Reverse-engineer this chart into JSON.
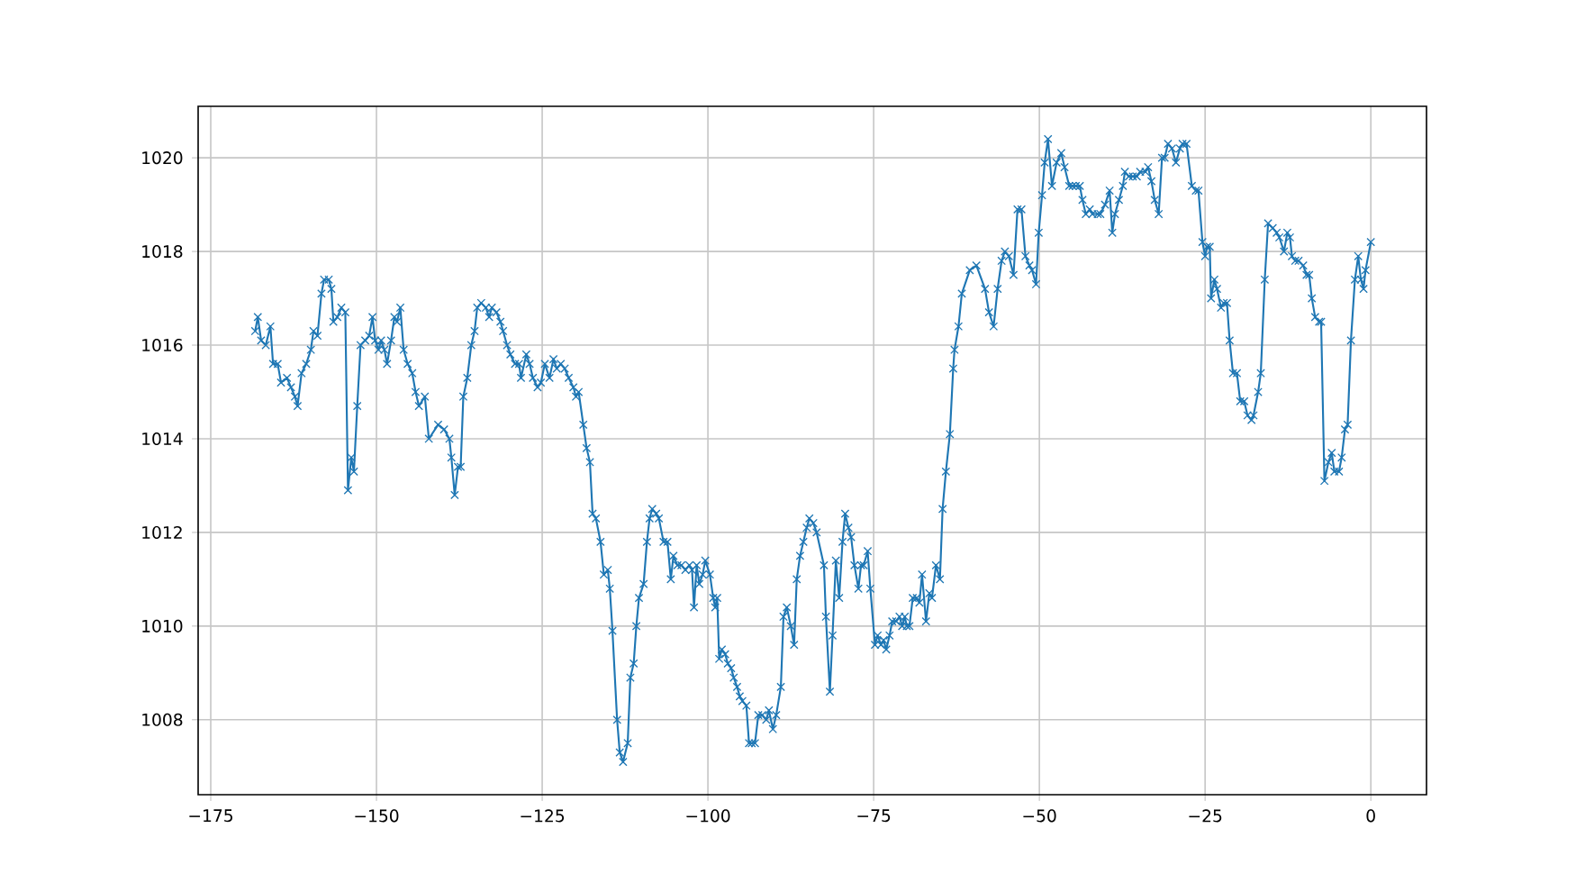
{
  "chart_data": {
    "type": "line",
    "color": "#1f77b4",
    "marker": "cross",
    "line_style": "solid",
    "grid": true,
    "xlim": [
      -176.9,
      8.4
    ],
    "ylim": [
      1006.4,
      1021.1
    ],
    "xticks": [
      {
        "value": -175,
        "label": "−175"
      },
      {
        "value": -150,
        "label": "−150"
      },
      {
        "value": -125,
        "label": "−125"
      },
      {
        "value": -100,
        "label": "−100"
      },
      {
        "value": -75,
        "label": "−75"
      },
      {
        "value": -50,
        "label": "−50"
      },
      {
        "value": -25,
        "label": "−25"
      },
      0
    ],
    "yticks": [
      1008,
      1010,
      1012,
      1014,
      1016,
      1018,
      1020
    ],
    "x": [
      -168.3,
      -167.9,
      -167.4,
      -166.7,
      -166.0,
      -165.6,
      -164.9,
      -164.4,
      -163.5,
      -162.9,
      -162.3,
      -161.9,
      -161.3,
      -160.6,
      -159.9,
      -159.5,
      -158.9,
      -158.3,
      -157.9,
      -157.2,
      -156.8,
      -156.5,
      -155.9,
      -155.3,
      -154.7,
      -154.3,
      -153.8,
      -153.4,
      -152.9,
      -152.4,
      -151.7,
      -151.1,
      -150.6,
      -150.2,
      -149.7,
      -149.3,
      -148.8,
      -148.4,
      -147.8,
      -147.3,
      -146.9,
      -146.4,
      -145.9,
      -145.3,
      -144.6,
      -144.1,
      -143.6,
      -142.7,
      -142.1,
      -140.7,
      -139.8,
      -139.0,
      -138.7,
      -138.2,
      -137.7,
      -137.3,
      -136.9,
      -136.3,
      -135.7,
      -135.2,
      -134.8,
      -134.2,
      -133.5,
      -133.0,
      -132.6,
      -131.9,
      -131.3,
      -130.9,
      -130.3,
      -129.8,
      -129.1,
      -128.5,
      -128.2,
      -127.4,
      -126.9,
      -126.4,
      -125.7,
      -125.2,
      -124.6,
      -123.9,
      -123.3,
      -122.8,
      -122.2,
      -121.6,
      -121.0,
      -120.3,
      -119.9,
      -119.5,
      -118.8,
      -118.3,
      -117.8,
      -117.4,
      -116.9,
      -116.2,
      -115.7,
      -115.1,
      -114.8,
      -114.4,
      -113.7,
      -113.3,
      -112.8,
      -112.1,
      -111.7,
      -111.2,
      -110.8,
      -110.4,
      -109.7,
      -109.2,
      -108.8,
      -108.4,
      -107.8,
      -107.4,
      -106.7,
      -106.1,
      -105.6,
      -105.2,
      -104.6,
      -104.0,
      -103.4,
      -102.8,
      -102.4,
      -102.1,
      -101.7,
      -101.3,
      -100.8,
      -100.4,
      -99.7,
      -99.2,
      -98.9,
      -98.6,
      -98.3,
      -97.9,
      -97.4,
      -97.0,
      -96.5,
      -96.1,
      -95.6,
      -95.2,
      -94.8,
      -94.2,
      -93.8,
      -93.4,
      -92.9,
      -92.4,
      -91.8,
      -91.2,
      -90.8,
      -90.2,
      -89.7,
      -89.0,
      -88.6,
      -88.1,
      -87.5,
      -87.0,
      -86.6,
      -86.1,
      -85.6,
      -85.1,
      -84.7,
      -84.1,
      -83.6,
      -82.5,
      -82.2,
      -81.6,
      -81.2,
      -80.7,
      -80.2,
      -79.7,
      -79.3,
      -78.8,
      -78.4,
      -77.9,
      -77.3,
      -76.9,
      -76.5,
      -75.9,
      -75.5,
      -74.8,
      -74.4,
      -73.9,
      -73.5,
      -73.1,
      -72.6,
      -72.2,
      -71.6,
      -71.1,
      -70.7,
      -70.3,
      -70.0,
      -69.6,
      -69.1,
      -68.5,
      -68.1,
      -67.7,
      -67.1,
      -66.6,
      -66.2,
      -65.6,
      -65.0,
      -64.6,
      -64.1,
      -63.5,
      -63.0,
      -62.8,
      -62.2,
      -61.7,
      -60.5,
      -59.5,
      -58.2,
      -57.6,
      -56.9,
      -56.3,
      -55.7,
      -55.2,
      -54.6,
      -53.9,
      -53.3,
      -52.7,
      -52.1,
      -51.5,
      -51.1,
      -50.5,
      -50.1,
      -49.6,
      -49.2,
      -48.7,
      -48.1,
      -47.4,
      -46.7,
      -46.2,
      -45.5,
      -45.0,
      -44.5,
      -43.9,
      -43.5,
      -43.0,
      -42.4,
      -42.0,
      -41.2,
      -40.8,
      -40.1,
      -39.4,
      -39.0,
      -38.6,
      -38.0,
      -37.4,
      -37.1,
      -36.5,
      -35.9,
      -35.3,
      -34.8,
      -34.0,
      -33.6,
      -33.1,
      -32.6,
      -32.0,
      -31.5,
      -31.1,
      -30.6,
      -30.0,
      -29.4,
      -28.8,
      -28.4,
      -27.8,
      -27.0,
      -26.4,
      -26.0,
      -25.4,
      -25.0,
      -24.7,
      -24.3,
      -24.1,
      -23.6,
      -23.2,
      -22.6,
      -22.2,
      -21.7,
      -21.3,
      -20.8,
      -20.2,
      -19.7,
      -19.1,
      -18.6,
      -18.0,
      -17.7,
      -17.0,
      -16.6,
      -16.0,
      -15.5,
      -14.8,
      -14.2,
      -13.8,
      -13.1,
      -12.6,
      -12.2,
      -11.9,
      -11.4,
      -10.9,
      -10.2,
      -9.7,
      -9.3,
      -8.9,
      -8.4,
      -7.8,
      -7.5,
      -7.0,
      -6.4,
      -5.9,
      -5.5,
      -4.8,
      -4.4,
      -3.9,
      -3.5,
      -3.0,
      -2.4,
      -1.9,
      -1.5,
      -1.1,
      -0.8,
      0.0
    ],
    "values": [
      1016.3,
      1016.6,
      1016.1,
      1016.0,
      1016.4,
      1015.6,
      1015.6,
      1015.2,
      1015.3,
      1015.1,
      1014.9,
      1014.7,
      1015.4,
      1015.6,
      1015.9,
      1016.3,
      1016.2,
      1017.1,
      1017.4,
      1017.4,
      1017.2,
      1016.5,
      1016.6,
      1016.8,
      1016.7,
      1012.9,
      1013.6,
      1013.3,
      1014.7,
      1016.0,
      1016.1,
      1016.2,
      1016.6,
      1016.1,
      1015.9,
      1016.1,
      1015.9,
      1015.6,
      1016.1,
      1016.6,
      1016.5,
      1016.8,
      1015.9,
      1015.6,
      1015.4,
      1015.0,
      1014.7,
      1014.9,
      1014.0,
      1014.3,
      1014.2,
      1014.0,
      1013.6,
      1012.8,
      1013.4,
      1013.4,
      1014.9,
      1015.3,
      1016.0,
      1016.3,
      1016.8,
      1016.9,
      1016.8,
      1016.6,
      1016.8,
      1016.7,
      1016.5,
      1016.3,
      1016.0,
      1015.8,
      1015.6,
      1015.6,
      1015.3,
      1015.8,
      1015.6,
      1015.3,
      1015.1,
      1015.2,
      1015.6,
      1015.3,
      1015.7,
      1015.5,
      1015.6,
      1015.5,
      1015.3,
      1015.1,
      1014.9,
      1015.0,
      1014.3,
      1013.8,
      1013.5,
      1012.4,
      1012.3,
      1011.8,
      1011.1,
      1011.2,
      1010.8,
      1009.9,
      1008.0,
      1007.3,
      1007.1,
      1007.5,
      1008.9,
      1009.2,
      1010.0,
      1010.6,
      1010.9,
      1011.8,
      1012.3,
      1012.5,
      1012.4,
      1012.3,
      1011.8,
      1011.8,
      1011.0,
      1011.5,
      1011.3,
      1011.3,
      1011.2,
      1011.3,
      1011.2,
      1010.4,
      1011.3,
      1010.9,
      1011.1,
      1011.4,
      1011.1,
      1010.6,
      1010.4,
      1010.6,
      1009.3,
      1009.5,
      1009.4,
      1009.2,
      1009.1,
      1008.9,
      1008.7,
      1008.5,
      1008.4,
      1008.3,
      1007.5,
      1007.5,
      1007.5,
      1008.1,
      1008.1,
      1008.0,
      1008.2,
      1007.8,
      1008.1,
      1008.7,
      1010.2,
      1010.4,
      1010.0,
      1009.6,
      1011.0,
      1011.5,
      1011.8,
      1012.1,
      1012.3,
      1012.2,
      1012.0,
      1011.3,
      1010.2,
      1008.6,
      1009.8,
      1011.4,
      1010.6,
      1011.8,
      1012.4,
      1012.1,
      1011.9,
      1011.3,
      1010.8,
      1011.3,
      1011.3,
      1011.6,
      1010.8,
      1009.6,
      1009.8,
      1009.6,
      1009.7,
      1009.5,
      1009.8,
      1010.1,
      1010.1,
      1010.2,
      1010.0,
      1010.2,
      1010.0,
      1010.0,
      1010.6,
      1010.6,
      1010.5,
      1011.1,
      1010.1,
      1010.7,
      1010.6,
      1011.3,
      1011.0,
      1012.5,
      1013.3,
      1014.1,
      1015.5,
      1015.9,
      1016.4,
      1017.1,
      1017.6,
      1017.7,
      1017.2,
      1016.7,
      1016.4,
      1017.2,
      1017.8,
      1018.0,
      1017.9,
      1017.5,
      1018.9,
      1018.9,
      1017.9,
      1017.7,
      1017.6,
      1017.3,
      1018.4,
      1019.2,
      1019.9,
      1020.4,
      1019.4,
      1019.9,
      1020.1,
      1019.8,
      1019.4,
      1019.4,
      1019.4,
      1019.4,
      1019.1,
      1018.8,
      1018.9,
      1018.8,
      1018.8,
      1018.8,
      1019.0,
      1019.3,
      1018.4,
      1018.8,
      1019.1,
      1019.4,
      1019.7,
      1019.6,
      1019.6,
      1019.6,
      1019.7,
      1019.7,
      1019.8,
      1019.5,
      1019.1,
      1018.8,
      1020.0,
      1020.0,
      1020.3,
      1020.2,
      1019.9,
      1020.2,
      1020.3,
      1020.3,
      1019.4,
      1019.3,
      1019.3,
      1018.2,
      1017.9,
      1018.1,
      1018.1,
      1017.0,
      1017.4,
      1017.2,
      1016.8,
      1016.9,
      1016.9,
      1016.1,
      1015.4,
      1015.4,
      1014.8,
      1014.8,
      1014.5,
      1014.4,
      1014.5,
      1015.0,
      1015.4,
      1017.4,
      1018.6,
      1018.5,
      1018.4,
      1018.3,
      1018.0,
      1018.4,
      1018.3,
      1017.9,
      1017.8,
      1017.8,
      1017.7,
      1017.5,
      1017.5,
      1017.0,
      1016.6,
      1016.5,
      1016.5,
      1013.1,
      1013.5,
      1013.7,
      1013.3,
      1013.3,
      1013.6,
      1014.2,
      1014.3,
      1016.1,
      1017.4,
      1017.9,
      1017.4,
      1017.2,
      1017.6,
      1018.2
    ]
  }
}
